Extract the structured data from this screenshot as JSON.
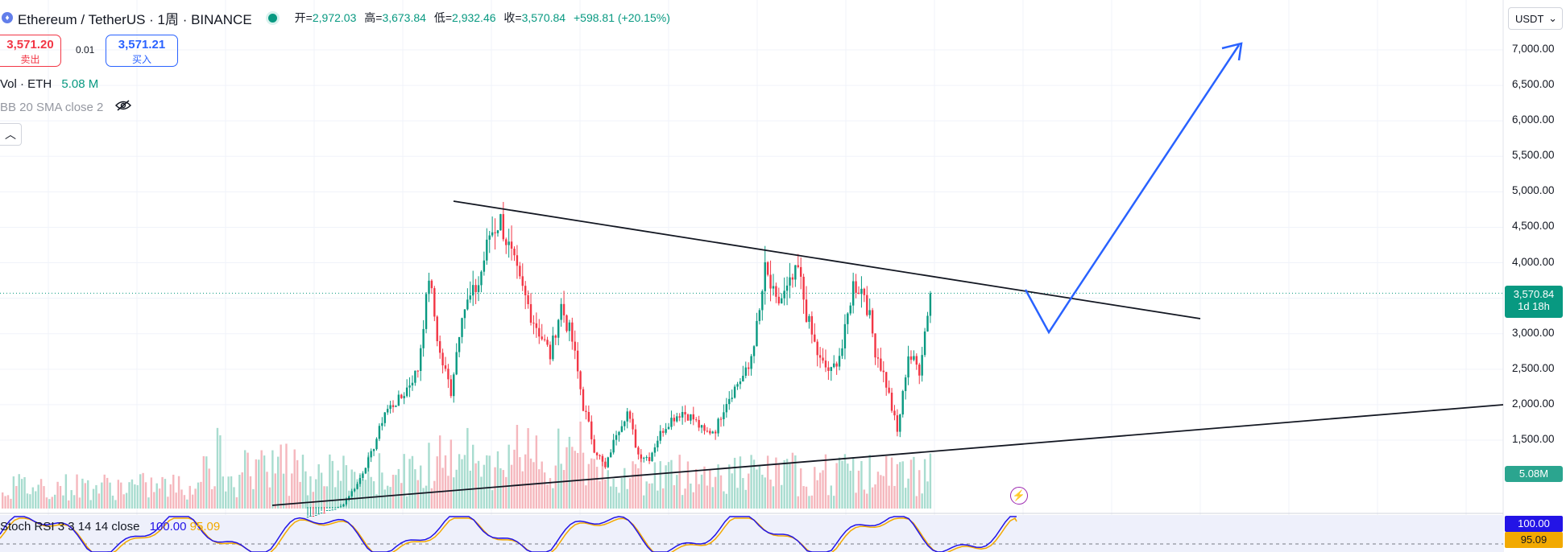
{
  "header": {
    "coin_icon": "ethereum-icon",
    "symbol": "Ethereum / TetherUS · 1周 · BINANCE",
    "open_label": "开=",
    "open": "2,972.03",
    "high_label": "高=",
    "high": "3,673.84",
    "low_label": "低=",
    "low": "2,932.46",
    "close_label": "收=",
    "close": "3,570.84",
    "change": "+598.81 (+20.15%)"
  },
  "trade": {
    "sell_price": "3,571.20",
    "sell_label": "卖出",
    "spread": "0.01",
    "buy_price": "3,571.21",
    "buy_label": "买入"
  },
  "indicators": {
    "volume_name": "Vol · ETH",
    "volume_value": "5.08 M",
    "bb_name": "BB 20 SMA close 2",
    "rsi_name": "Stoch RSI 3 3 14 14 close",
    "rsi_k": "100.00",
    "rsi_d": "95.09"
  },
  "price_axis": {
    "currency": "USDT",
    "labels": [
      "7,000.00",
      "6,500.00",
      "6,000.00",
      "5,500.00",
      "5,000.00",
      "4,500.00",
      "4,000.00",
      "3,000.00",
      "2,500.00",
      "2,000.00",
      "1,500.00"
    ],
    "current_price": "3,570.84",
    "countdown": "1d 18h",
    "volume_tag": "5.08M",
    "rsi_k_tag": "100.00",
    "rsi_d_tag": "95.09"
  },
  "colors": {
    "up": "#089981",
    "down": "#f23645",
    "projection": "#2962ff",
    "rsi_k": "#2314e6",
    "rsi_d": "#f2a900"
  }
}
